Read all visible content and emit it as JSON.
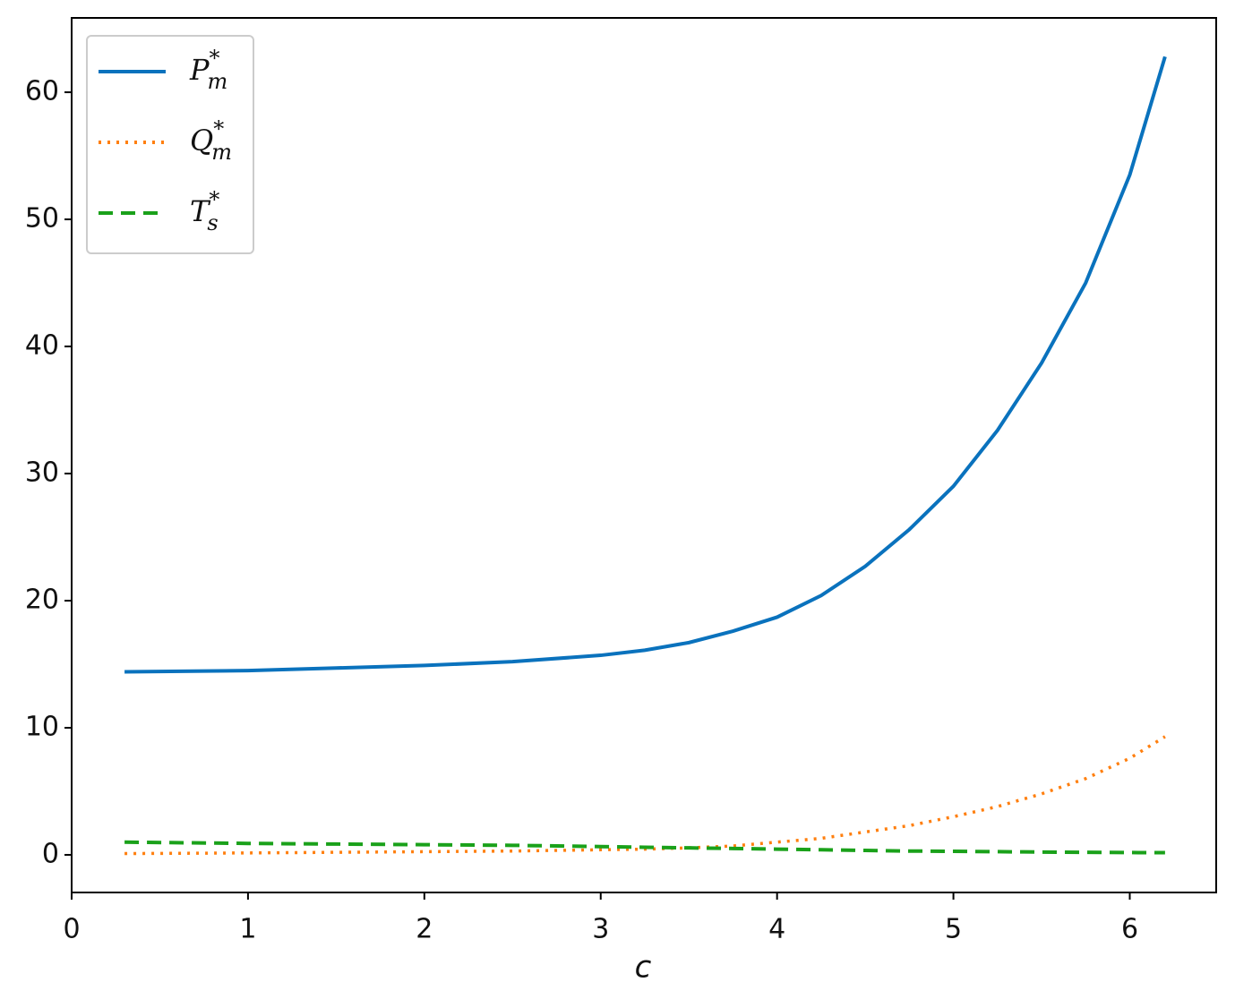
{
  "chart_data": {
    "type": "line",
    "x_label": "c",
    "x": [
      0.3,
      1,
      1.5,
      2,
      2.5,
      3,
      3.25,
      3.5,
      3.75,
      4,
      4.25,
      4.5,
      4.75,
      5,
      5.25,
      5.5,
      5.75,
      6,
      6.2
    ],
    "series": [
      {
        "name": "P",
        "name_subscript": "m",
        "name_superscript": "*",
        "color": "#0a72bd",
        "style": "solid",
        "values": [
          14.4,
          14.5,
          14.7,
          14.9,
          15.2,
          15.7,
          16.1,
          16.7,
          17.6,
          18.7,
          20.4,
          22.7,
          25.6,
          29,
          33.4,
          38.7,
          45,
          53.5,
          62.8
        ]
      },
      {
        "name": "Q",
        "name_subscript": "m",
        "name_superscript": "*",
        "color": "#ff7f0e",
        "style": "dotted",
        "values": [
          0.1,
          0.15,
          0.2,
          0.25,
          0.3,
          0.4,
          0.45,
          0.55,
          0.7,
          1.0,
          1.3,
          1.8,
          2.3,
          3.0,
          3.8,
          4.8,
          6.0,
          7.6,
          9.3
        ]
      },
      {
        "name": "T",
        "name_subscript": "s",
        "name_superscript": "*",
        "color": "#1aa11a",
        "style": "dashed",
        "values": [
          1.0,
          0.9,
          0.85,
          0.8,
          0.75,
          0.65,
          0.6,
          0.55,
          0.5,
          0.45,
          0.4,
          0.35,
          0.3,
          0.28,
          0.25,
          0.22,
          0.2,
          0.18,
          0.17
        ]
      }
    ],
    "xlim": [
      0,
      6.49
    ],
    "ylim": [
      -2.96,
      65.85
    ],
    "xticks": [
      0,
      1,
      2,
      3,
      4,
      5,
      6
    ],
    "yticks": [
      0,
      10,
      20,
      30,
      40,
      50,
      60
    ],
    "grid": false,
    "legend": "upper left"
  }
}
